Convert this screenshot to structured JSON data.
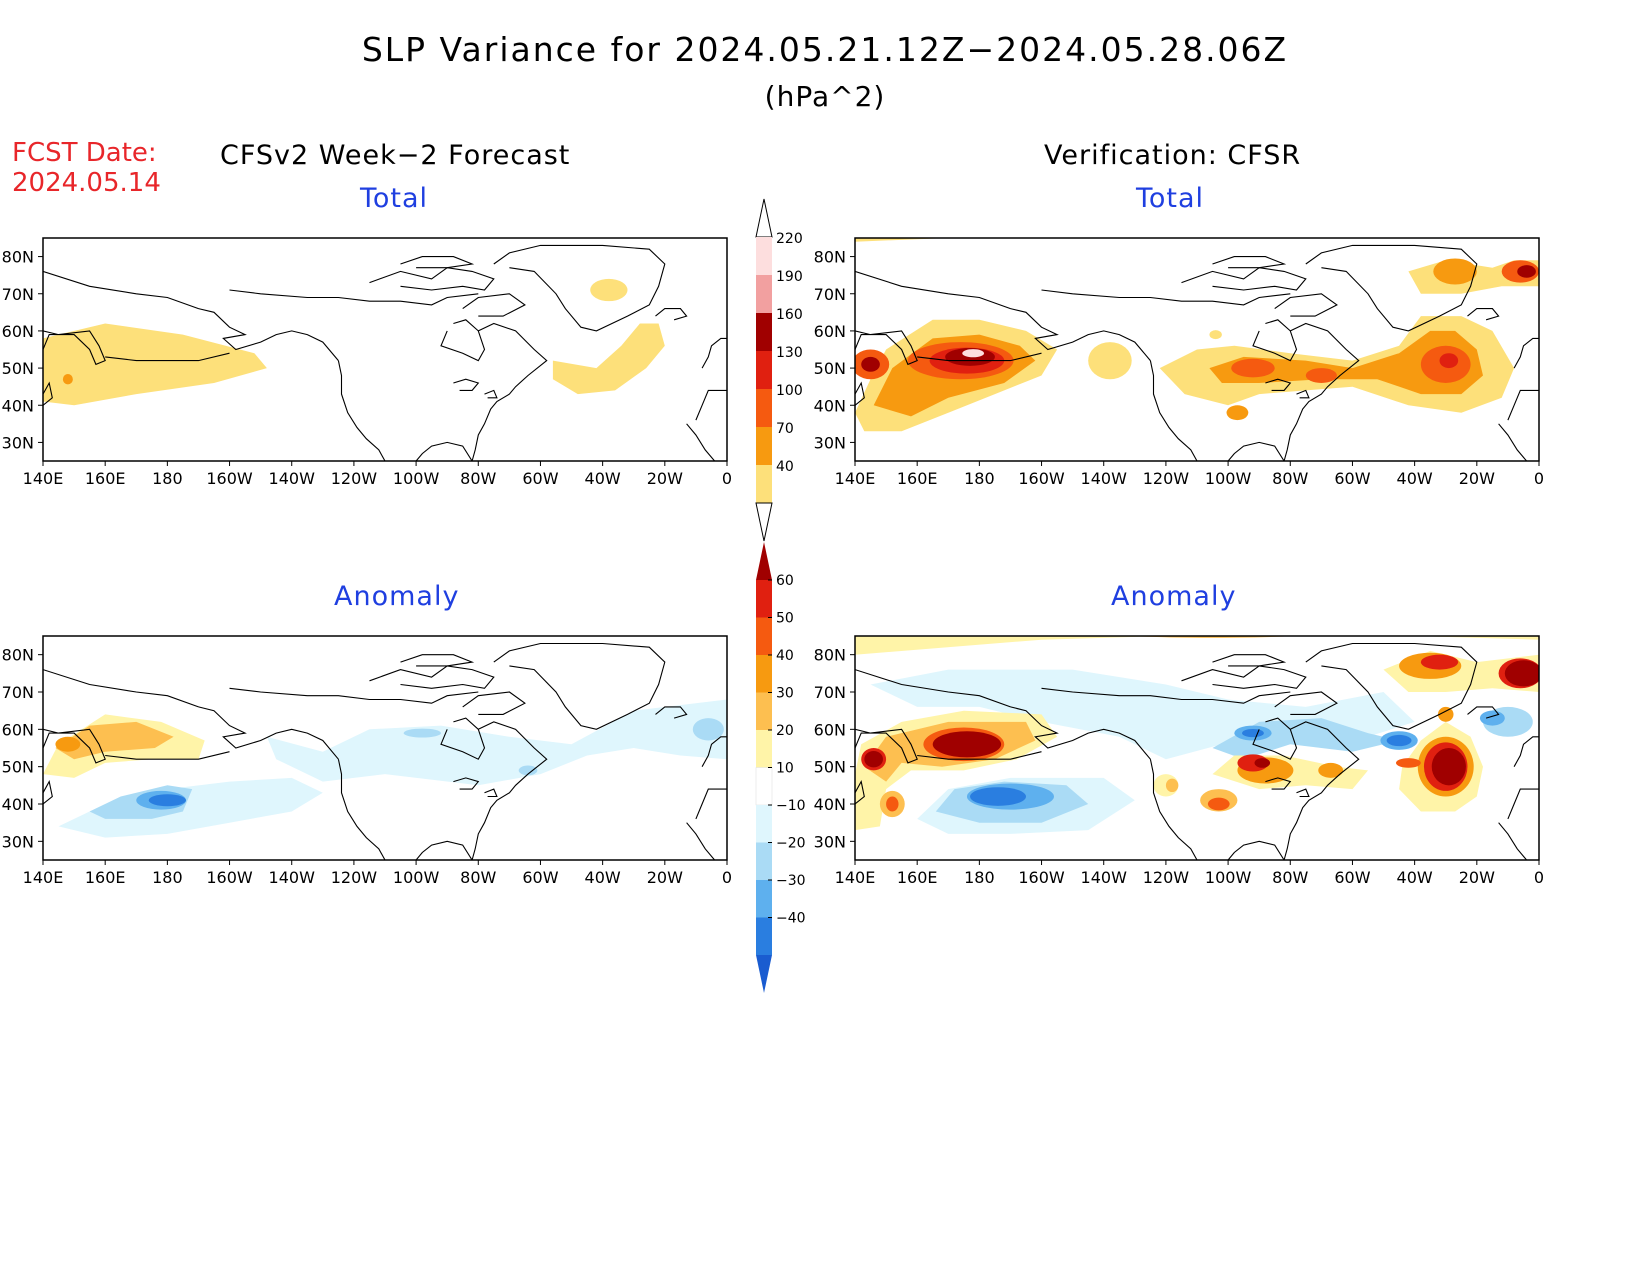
{
  "header": {
    "title": "SLP Variance for 2024.05.21.12Z−2024.05.28.06Z",
    "units": "(hPa^2)",
    "fcst_label": "FCST Date:",
    "fcst_date": "2024.05.14",
    "left_column": "CFSv2 Week−2 Forecast",
    "right_column": "Verification: CFSR"
  },
  "panels": {
    "top_left": "Total",
    "top_right": "Total",
    "bottom_left": "Anomaly",
    "bottom_right": "Anomaly"
  },
  "axes": {
    "lat_labels": [
      "80N",
      "70N",
      "60N",
      "50N",
      "40N",
      "30N"
    ],
    "lon_labels": [
      "140E",
      "160E",
      "180",
      "160W",
      "140W",
      "120W",
      "100W",
      "80W",
      "60W",
      "40W",
      "20W",
      "0"
    ]
  },
  "colorbar_total": {
    "labels": [
      "220",
      "190",
      "160",
      "130",
      "100",
      "70",
      "40"
    ],
    "colors": [
      "#fddede",
      "#f2a0a0",
      "#a00000",
      "#e02010",
      "#f55a10",
      "#f79a10",
      "#fde07a"
    ]
  },
  "colorbar_anomaly": {
    "labels": [
      "60",
      "50",
      "40",
      "30",
      "20",
      "10",
      "−10",
      "−20",
      "−30",
      "−40"
    ],
    "colors": [
      "#a00000",
      "#e02010",
      "#f55a10",
      "#f79a10",
      "#fdbf50",
      "#fff4a8",
      "#ffffff",
      "#dff6fd",
      "#aadbf5",
      "#5eb0ee",
      "#2a7ee0",
      "#1a5cd0"
    ]
  }
}
